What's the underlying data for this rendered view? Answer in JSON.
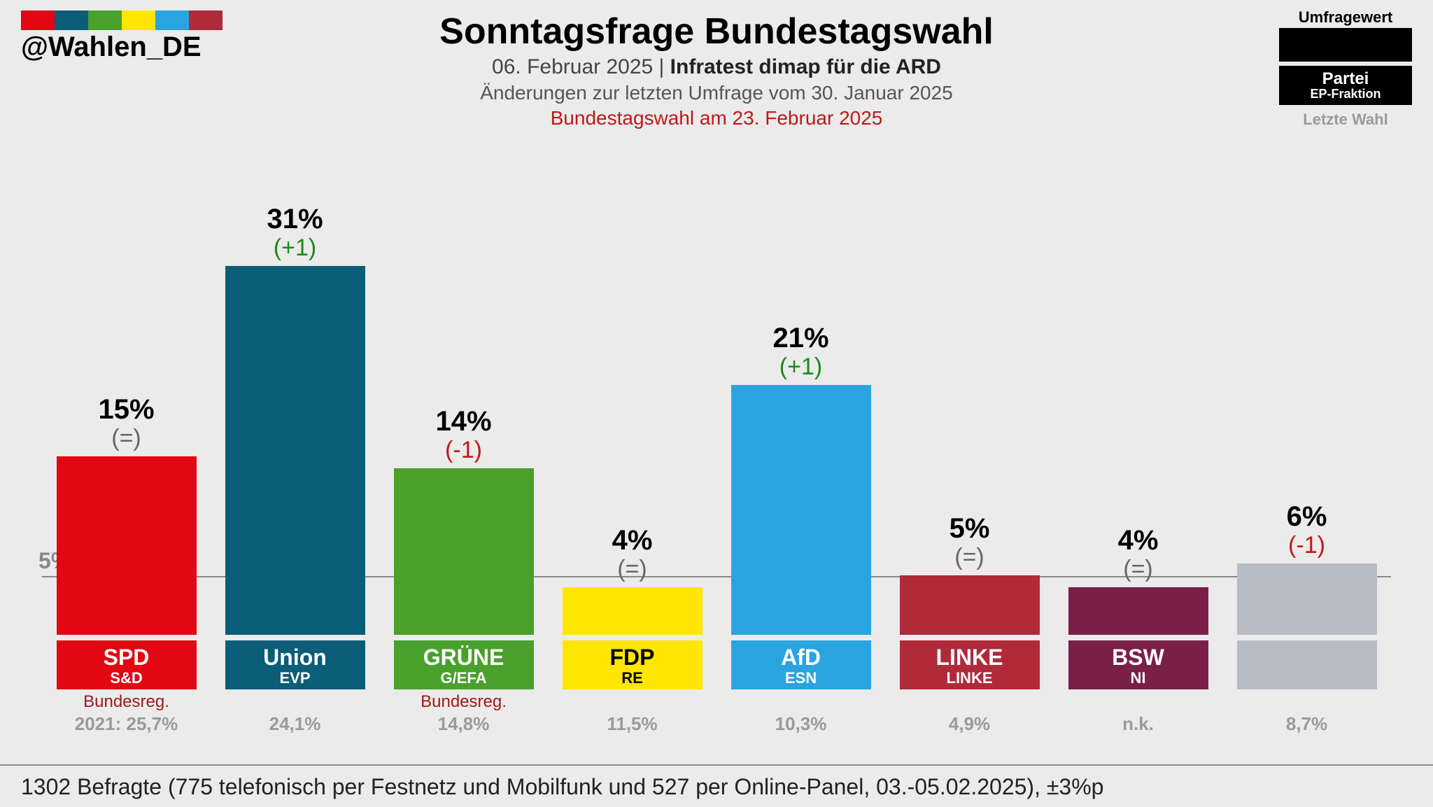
{
  "logo": {
    "colors": [
      "#e30613",
      "#0b5d78",
      "#4aa02c",
      "#ffe600",
      "#2aa4e0",
      "#b02a3a"
    ],
    "handle": "@Wahlen_DE"
  },
  "title": {
    "main": "Sonntagsfrage Bundestagswahl",
    "date": "06. Februar 2025",
    "institute": "Infratest dimap für die ARD",
    "change_note": "Änderungen zur letzten Umfrage vom 30. Januar 2025",
    "election_note": "Bundestagswahl am 23. Februar 2025"
  },
  "legend": {
    "top": "Umfragewert",
    "partei": "Partei",
    "ep": "EP-Fraktion",
    "last": "Letzte Wahl"
  },
  "chart": {
    "type": "bar",
    "max_value": 35,
    "bar_height_per_pct": 17,
    "threshold_value": 5,
    "threshold_label": "5%",
    "background": "#ebebeb",
    "parties": [
      {
        "name": "SPD",
        "ep": "S&D",
        "value": 15,
        "value_label": "15%",
        "change": "(=)",
        "change_type": "equal",
        "color": "#e30613",
        "text_dark": false,
        "gov": "Bundesreg.",
        "prev": "2021: 25,7%"
      },
      {
        "name": "Union",
        "ep": "EVP",
        "value": 31,
        "value_label": "31%",
        "change": "(+1)",
        "change_type": "plus",
        "color": "#0b5d78",
        "text_dark": false,
        "gov": "",
        "prev": "24,1%"
      },
      {
        "name": "GRÜNE",
        "ep": "G/EFA",
        "value": 14,
        "value_label": "14%",
        "change": "(-1)",
        "change_type": "minus",
        "color": "#4aa02c",
        "text_dark": false,
        "gov": "Bundesreg.",
        "prev": "14,8%"
      },
      {
        "name": "FDP",
        "ep": "RE",
        "value": 4,
        "value_label": "4%",
        "change": "(=)",
        "change_type": "equal",
        "color": "#ffe600",
        "text_dark": true,
        "gov": "",
        "prev": "11,5%"
      },
      {
        "name": "AfD",
        "ep": "ESN",
        "value": 21,
        "value_label": "21%",
        "change": "(+1)",
        "change_type": "plus",
        "color": "#2aa4e0",
        "text_dark": false,
        "gov": "",
        "prev": "10,3%"
      },
      {
        "name": "LINKE",
        "ep": "LINKE",
        "value": 5,
        "value_label": "5%",
        "change": "(=)",
        "change_type": "equal",
        "color": "#b02a3a",
        "text_dark": false,
        "gov": "",
        "prev": "4,9%"
      },
      {
        "name": "BSW",
        "ep": "NI",
        "value": 4,
        "value_label": "4%",
        "change": "(=)",
        "change_type": "equal",
        "color": "#7a1f4a",
        "text_dark": false,
        "gov": "",
        "prev": "n.k."
      },
      {
        "name": "",
        "ep": "",
        "value": 6,
        "value_label": "6%",
        "change": "(-1)",
        "change_type": "minus",
        "color": "#b6bcc6",
        "text_dark": false,
        "gov": "",
        "prev": "8,7%"
      }
    ]
  },
  "footer": "1302 Befragte (775 telefonisch per Festnetz und Mobilfunk und 527 per Online-Panel, 03.-05.02.2025), ±3%p"
}
